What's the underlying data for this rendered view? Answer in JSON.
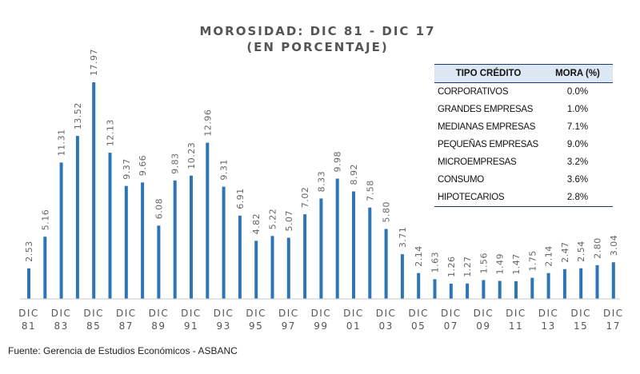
{
  "chart_data": {
    "type": "bar",
    "title_line1": "MOROSIDAD: DIC 81 - DIC 17",
    "title_line2": "(EN PORCENTAJE)",
    "xlabel": "",
    "ylabel": "",
    "ylim": [
      0,
      18
    ],
    "grid": false,
    "bar_color": "#2e75b6",
    "categories": [
      "DIC 81",
      "DIC 82",
      "DIC 83",
      "DIC 84",
      "DIC 85",
      "DIC 86",
      "DIC 87",
      "DIC 88",
      "DIC 89",
      "DIC 90",
      "DIC 91",
      "DIC 92",
      "DIC 93",
      "DIC 94",
      "DIC 95",
      "DIC 96",
      "DIC 97",
      "DIC 98",
      "DIC 99",
      "DIC 00",
      "DIC 01",
      "DIC 02",
      "DIC 03",
      "DIC 04",
      "DIC 05",
      "DIC 06",
      "DIC 07",
      "DIC 08",
      "DIC 09",
      "DIC 10",
      "DIC 11",
      "DIC 12",
      "DIC 13",
      "DIC 14",
      "DIC 15",
      "DIC 16",
      "DIC 17"
    ],
    "values": [
      2.53,
      5.16,
      11.31,
      13.52,
      17.97,
      12.13,
      9.37,
      9.66,
      6.08,
      9.83,
      10.23,
      12.96,
      9.31,
      6.91,
      4.82,
      5.22,
      5.07,
      7.02,
      8.33,
      9.98,
      8.92,
      7.58,
      5.8,
      3.71,
      2.14,
      1.63,
      1.26,
      1.27,
      1.56,
      1.49,
      1.47,
      1.75,
      2.14,
      2.47,
      2.54,
      2.8,
      3.04
    ],
    "value_labels": [
      "2.53",
      "5.16",
      "11.31",
      "13.52",
      "17.97",
      "12.13",
      "9.37",
      "9.66",
      "6.08",
      "9.83",
      "10.23",
      "12.96",
      "9.31",
      "6.91",
      "4.82",
      "5.22",
      "5.07",
      "7.02",
      "8.33",
      "9.98",
      "8.92",
      "7.58",
      "5.80",
      "3.71",
      "2.14",
      "1.63",
      "1.26",
      "1.27",
      "1.56",
      "1.49",
      "1.47",
      "1.75",
      "2.14",
      "2.47",
      "2.54",
      "2.80",
      "3.04"
    ],
    "tick_labels": [
      {
        "top": "DIC",
        "bottom": "81"
      },
      {
        "top": "DIC",
        "bottom": "83"
      },
      {
        "top": "DIC",
        "bottom": "85"
      },
      {
        "top": "DIC",
        "bottom": "87"
      },
      {
        "top": "DIC",
        "bottom": "89"
      },
      {
        "top": "DIC",
        "bottom": "91"
      },
      {
        "top": "DIC",
        "bottom": "93"
      },
      {
        "top": "DIC",
        "bottom": "95"
      },
      {
        "top": "DIC",
        "bottom": "97"
      },
      {
        "top": "DIC",
        "bottom": "99"
      },
      {
        "top": "DIC",
        "bottom": "01"
      },
      {
        "top": "DIC",
        "bottom": "03"
      },
      {
        "top": "DIC",
        "bottom": "05"
      },
      {
        "top": "DIC",
        "bottom": "07"
      },
      {
        "top": "DIC",
        "bottom": "09"
      },
      {
        "top": "DIC",
        "bottom": "11"
      },
      {
        "top": "DIC",
        "bottom": "13"
      },
      {
        "top": "DIC",
        "bottom": "15"
      },
      {
        "top": "DIC",
        "bottom": "17"
      }
    ],
    "table": {
      "headers": [
        "TIPO CRÉDITO",
        "MORA (%)"
      ],
      "rows": [
        {
          "type": "CORPORATIVOS",
          "rate": "0.0%"
        },
        {
          "type": "GRANDES EMPRESAS",
          "rate": "1.0%"
        },
        {
          "type": "MEDIANAS EMPRESAS",
          "rate": "7.1%"
        },
        {
          "type": "PEQUEÑAS EMPRESAS",
          "rate": "9.0%"
        },
        {
          "type": "MICROEMPRESAS",
          "rate": "3.2%"
        },
        {
          "type": "CONSUMO",
          "rate": "3.6%"
        },
        {
          "type": "HIPOTECARIOS",
          "rate": "2.8%"
        }
      ]
    },
    "source": "Fuente: Gerencia de Estudios Económicos - ASBANC"
  }
}
